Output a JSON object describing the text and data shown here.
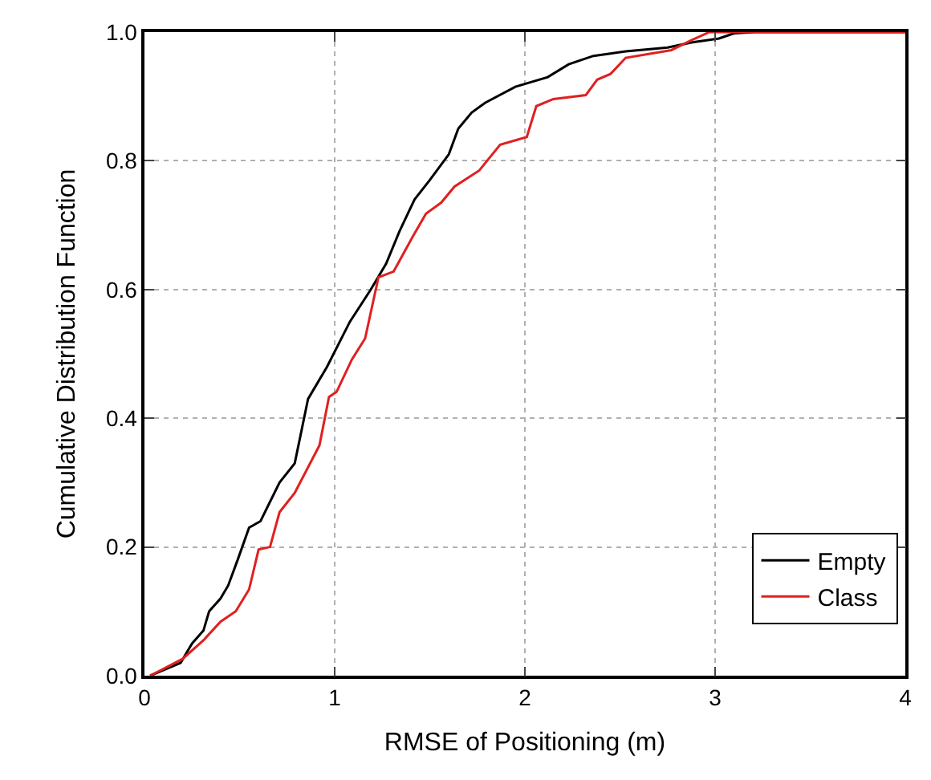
{
  "chart_data": {
    "type": "line",
    "xlabel": "RMSE of Positioning (m)",
    "ylabel": "Cumulative Distribution Function",
    "xlim": [
      0,
      4
    ],
    "xticks": [
      0,
      1,
      2,
      3,
      4
    ],
    "ylim": [
      0,
      1
    ],
    "yticks": [
      {
        "value": 0,
        "label": "0.0"
      },
      {
        "value": 0.2,
        "label": "0.2"
      },
      {
        "value": 0.4,
        "label": "0.4"
      },
      {
        "value": 0.6,
        "label": "0.6"
      },
      {
        "value": 0.8,
        "label": "0.8"
      },
      {
        "value": 1,
        "label": "1.0"
      }
    ],
    "grid": true,
    "legend": "bottom right",
    "marker": "none",
    "line_style": "solid",
    "series": [
      {
        "name": "Empty",
        "color": "#000000",
        "x": [
          0.03,
          0.19,
          0.25,
          0.31,
          0.34,
          0.4,
          0.44,
          0.49,
          0.55,
          0.61,
          0.71,
          0.79,
          0.86,
          0.96,
          1.08,
          1.19,
          1.27,
          1.34,
          1.42,
          1.5,
          1.6,
          1.65,
          1.72,
          1.79,
          1.95,
          2.12,
          2.23,
          2.36,
          2.53,
          2.75,
          2.88,
          3.02,
          3.1,
          3.21,
          4
        ],
        "values": [
          0,
          0.02,
          0.05,
          0.07,
          0.1,
          0.12,
          0.14,
          0.18,
          0.23,
          0.24,
          0.3,
          0.33,
          0.43,
          0.48,
          0.55,
          0.6,
          0.64,
          0.69,
          0.74,
          0.77,
          0.81,
          0.85,
          0.875,
          0.89,
          0.915,
          0.93,
          0.95,
          0.963,
          0.97,
          0.976,
          0.984,
          0.99,
          0.998,
          1,
          1
        ]
      },
      {
        "name": "Class",
        "color": "#e02020",
        "x": [
          0.03,
          0.2,
          0.31,
          0.4,
          0.48,
          0.55,
          0.6,
          0.66,
          0.71,
          0.79,
          0.92,
          0.97,
          1.01,
          1.09,
          1.16,
          1.23,
          1.31,
          1.41,
          1.48,
          1.56,
          1.63,
          1.76,
          1.87,
          2.01,
          2.06,
          2.15,
          2.32,
          2.38,
          2.45,
          2.53,
          2.77,
          2.88,
          2.97,
          4
        ],
        "values": [
          0,
          0.026,
          0.055,
          0.084,
          0.1,
          0.134,
          0.196,
          0.2,
          0.254,
          0.284,
          0.358,
          0.433,
          0.441,
          0.491,
          0.524,
          0.619,
          0.628,
          0.682,
          0.718,
          0.735,
          0.76,
          0.785,
          0.825,
          0.837,
          0.885,
          0.896,
          0.902,
          0.926,
          0.935,
          0.96,
          0.972,
          0.988,
          1,
          1
        ]
      }
    ]
  }
}
